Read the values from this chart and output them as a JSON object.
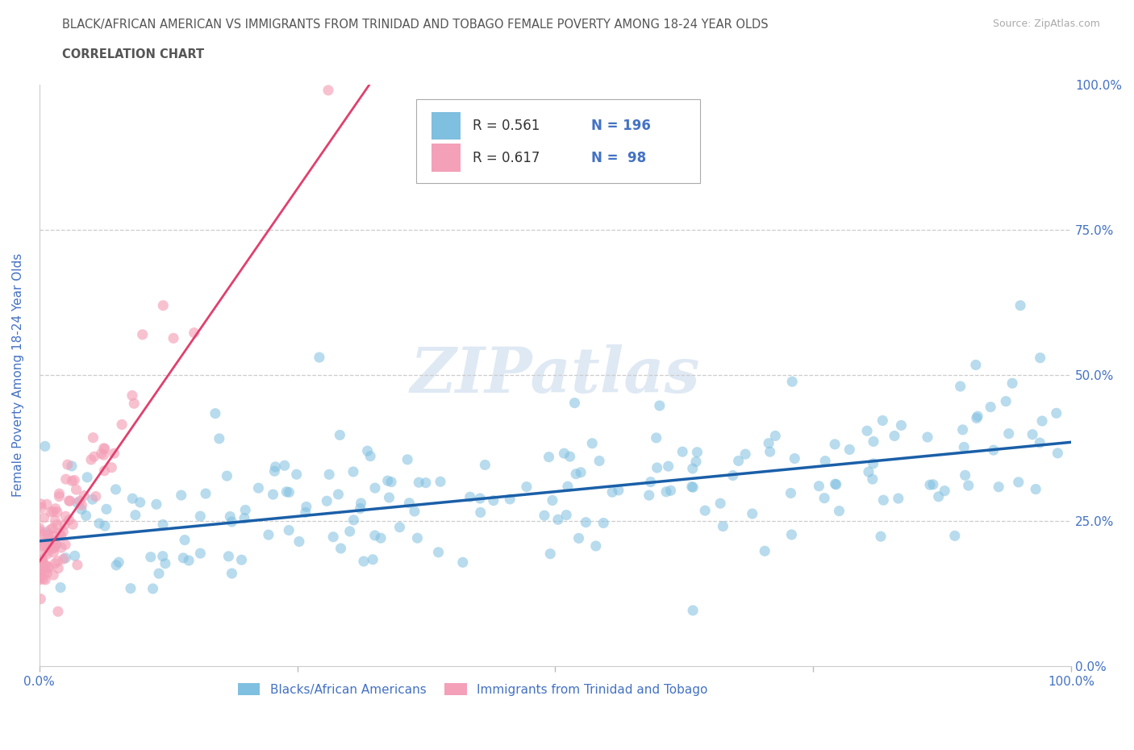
{
  "title_line1": "BLACK/AFRICAN AMERICAN VS IMMIGRANTS FROM TRINIDAD AND TOBAGO FEMALE POVERTY AMONG 18-24 YEAR OLDS",
  "title_line2": "CORRELATION CHART",
  "source_text": "Source: ZipAtlas.com",
  "ylabel": "Female Poverty Among 18-24 Year Olds",
  "xlim": [
    0.0,
    1.0
  ],
  "ylim": [
    0.0,
    1.0
  ],
  "ytick_labels": [
    "0.0%",
    "25.0%",
    "50.0%",
    "75.0%",
    "100.0%"
  ],
  "ytick_values": [
    0.0,
    0.25,
    0.5,
    0.75,
    1.0
  ],
  "watermark": "ZIPatlas",
  "legend_r1": "R = 0.561",
  "legend_n1": "N = 196",
  "legend_r2": "R = 0.617",
  "legend_n2": "N =  98",
  "legend_label1": "Blacks/African Americans",
  "legend_label2": "Immigrants from Trinidad and Tobago",
  "blue_color": "#7fbfdf",
  "blue_line_color": "#1a5fa8",
  "pink_color": "#f4a0b8",
  "pink_line_color": "#e0406e",
  "title_color": "#555555",
  "axis_label_color": "#4472c4",
  "grid_color": "#cccccc",
  "background_color": "#ffffff",
  "n_blue": 196,
  "n_pink": 98,
  "blue_line_x0": 0.0,
  "blue_line_y0": 0.215,
  "blue_line_x1": 1.0,
  "blue_line_y1": 0.385,
  "pink_line_x0": 0.0,
  "pink_line_y0": 0.18,
  "pink_line_x1": 0.32,
  "pink_line_y1": 1.0
}
